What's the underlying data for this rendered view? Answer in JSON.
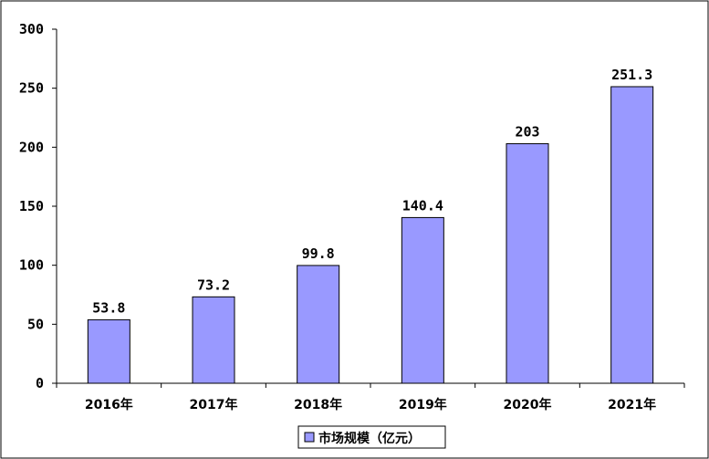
{
  "chart_data": {
    "type": "bar",
    "categories": [
      "2016年",
      "2017年",
      "2018年",
      "2019年",
      "2020年",
      "2021年"
    ],
    "series": [
      {
        "name": "市场规模（亿元）",
        "values": [
          53.8,
          73.2,
          99.8,
          140.4,
          203,
          251.3
        ],
        "value_labels": [
          "53.8",
          "73.2",
          "99.8",
          "140.4",
          "203",
          "251.3"
        ],
        "color": "#9999ff"
      }
    ],
    "y_ticks": [
      "0",
      "50",
      "100",
      "150",
      "200",
      "250",
      "300"
    ],
    "ylim": [
      0,
      300
    ],
    "grid": false,
    "legend_position": "bottom",
    "title": "",
    "xlabel": "",
    "ylabel": ""
  }
}
